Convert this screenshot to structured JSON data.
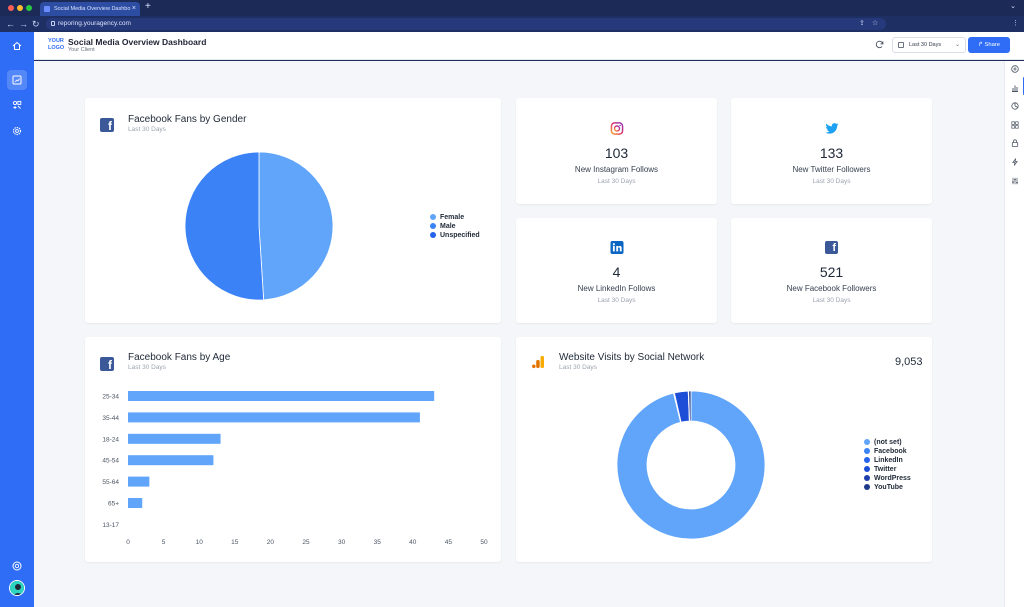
{
  "browser": {
    "tab_title": "Social Media Overview Dashbo",
    "url": "reporing.youragency.com"
  },
  "header": {
    "logo_line1": "YOUR",
    "logo_line2": "LOGO",
    "title": "Social Media Overview Dashboard",
    "client": "Your Client",
    "date_range": "Last 30 Days",
    "share_label": "Share"
  },
  "fans_gender": {
    "title": "Facebook Fans by Gender",
    "period": "Last 30 Days",
    "legend": [
      {
        "label": "Female",
        "color": "#60a5fa"
      },
      {
        "label": "Male",
        "color": "#3b82f6"
      },
      {
        "label": "Unspecified",
        "color": "#2563eb"
      }
    ]
  },
  "stats": [
    {
      "value": "103",
      "label": "New Instagram Follows",
      "period": "Last 30 Days",
      "icon": "instagram-icon"
    },
    {
      "value": "133",
      "label": "New Twitter Followers",
      "period": "Last 30 Days",
      "icon": "twitter-icon"
    },
    {
      "value": "4",
      "label": "New LinkedIn Follows",
      "period": "Last 30 Days",
      "icon": "linkedin-icon"
    },
    {
      "value": "521",
      "label": "New Facebook Followers",
      "period": "Last 30 Days",
      "icon": "facebook-icon"
    }
  ],
  "fans_age": {
    "title": "Facebook Fans by Age",
    "period": "Last 30 Days"
  },
  "visits": {
    "title": "Website Visits by Social Network",
    "period": "Last 30 Days",
    "total": "9,053",
    "legend": [
      {
        "label": "(not set)",
        "color": "#60a5fa"
      },
      {
        "label": "Facebook",
        "color": "#3b82f6"
      },
      {
        "label": "LinkedIn",
        "color": "#2563eb"
      },
      {
        "label": "Twitter",
        "color": "#1d4ed8"
      },
      {
        "label": "WordPress",
        "color": "#1e40af"
      },
      {
        "label": "YouTube",
        "color": "#1e3a8a"
      }
    ]
  },
  "chart_data": [
    {
      "type": "pie",
      "title": "Facebook Fans by Gender",
      "categories": [
        "Female",
        "Male",
        "Unspecified"
      ],
      "values": [
        49,
        51,
        0
      ],
      "colors": [
        "#60a5fa",
        "#3b82f6",
        "#2563eb"
      ]
    },
    {
      "type": "bar",
      "orientation": "horizontal",
      "title": "Facebook Fans by Age",
      "categories": [
        "25-34",
        "35-44",
        "18-24",
        "45-54",
        "55-64",
        "65+",
        "13-17"
      ],
      "values": [
        43,
        41,
        13,
        12,
        3,
        2,
        0
      ],
      "xlim": [
        0,
        50
      ],
      "xticks": [
        "0",
        "5",
        "10",
        "15",
        "20",
        "25",
        "30",
        "35",
        "40",
        "45",
        "50"
      ],
      "color": "#60a5fa"
    },
    {
      "type": "pie",
      "donut": true,
      "title": "Website Visits by Social Network",
      "categories": [
        "(not set)",
        "Facebook",
        "LinkedIn",
        "Twitter",
        "WordPress",
        "YouTube"
      ],
      "values": [
        96.2,
        0.1,
        0.1,
        3.0,
        0.1,
        0.5
      ],
      "colors": [
        "#60a5fa",
        "#3b82f6",
        "#2563eb",
        "#1d4ed8",
        "#1e40af",
        "#1e3a8a"
      ]
    }
  ]
}
